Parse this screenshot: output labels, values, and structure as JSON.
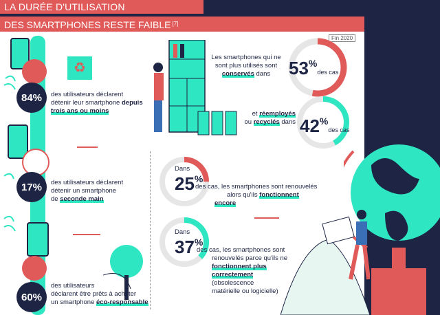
{
  "header": {
    "title": "LA DURÉE D'UTILISATION",
    "subtitle": "DES SMARTPHONES RESTE FAIBLE",
    "subtitle_ref": "[7]"
  },
  "badge": "Fin 2020",
  "left": {
    "stat1": {
      "value": "84%",
      "text_a": "des utilisateurs déclarent",
      "text_b": "détenir leur smartphone",
      "text_c": "depuis",
      "text_d": "trois ans ou moins"
    },
    "stat2": {
      "value": "17%",
      "text_a": "des utilisateurs déclarent",
      "text_b": "détenir un smartphone",
      "text_c": "de",
      "text_d": "seconde main"
    },
    "stat3": {
      "value": "60%",
      "text_a": "des utilisateurs",
      "text_b": "déclarent être prêts à acheter",
      "text_c": "un smartphone",
      "text_d": "éco-responsable"
    }
  },
  "right": {
    "s1": {
      "value": "53",
      "pct": "%",
      "cas": "des cas",
      "text_a": "Les smartphones qui ne",
      "text_b": "sont plus utilisés sont",
      "hl": "conservés",
      "text_c": "dans"
    },
    "s2": {
      "value": "42",
      "pct": "%",
      "cas": "des cas",
      "text_a": "et",
      "hl1": "réemployés",
      "text_b": "ou",
      "hl2": "recyclés",
      "text_c": "dans"
    },
    "s3": {
      "dans": "Dans",
      "value": "25",
      "pct": "%",
      "text_a": "des cas, les smartphones sont renouvelés",
      "text_b": "alors qu'ils",
      "hl": "fonctionnent",
      "hl2": "encore"
    },
    "s4": {
      "dans": "Dans",
      "value": "37",
      "pct": "%",
      "text_a": "des cas, les smartphones sont",
      "text_b": "renouvelés parce qu'ils ne",
      "hl": "fonctionnent plus",
      "hl2": "correctement",
      "text_c": "(obsolescence",
      "text_d": "matérielle ou logicielle)"
    }
  },
  "colors": {
    "navy": "#1d2444",
    "coral": "#e05a5a",
    "teal": "#2ee6c1"
  },
  "gauges": {
    "g1": 0.53,
    "g2": 0.42,
    "g3": 0.25,
    "g4": 0.37
  }
}
